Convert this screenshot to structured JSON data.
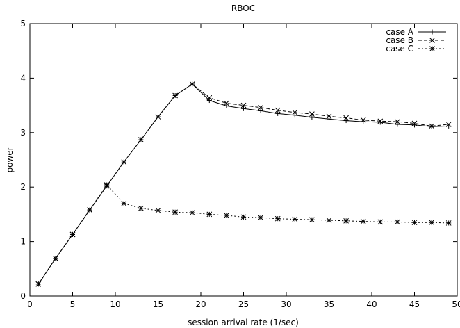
{
  "chart_data": {
    "type": "line",
    "title": "RBOC",
    "xlabel": "session arrival rate (1/sec)",
    "ylabel": "power",
    "xlim": [
      0,
      50
    ],
    "ylim": [
      0,
      5
    ],
    "xticks": [
      0,
      5,
      10,
      15,
      20,
      25,
      30,
      35,
      40,
      45,
      50
    ],
    "yticks": [
      0,
      1,
      2,
      3,
      4,
      5
    ],
    "xtick_labels": [
      "0",
      "5",
      "10",
      "15",
      "20",
      "25",
      "30",
      "35",
      "40",
      "45",
      "50"
    ],
    "ytick_labels": [
      "0",
      "1",
      "2",
      "3",
      "4",
      "5"
    ],
    "grid": false,
    "legend_position": "top-right",
    "x": [
      1,
      3,
      5,
      7,
      9,
      11,
      13,
      15,
      17,
      19,
      21,
      23,
      25,
      27,
      29,
      31,
      33,
      35,
      37,
      39,
      41,
      43,
      45,
      47,
      49
    ],
    "series": [
      {
        "name": "case A",
        "line_style": "solid",
        "marker": "plus",
        "values": [
          0.22,
          0.69,
          1.13,
          1.58,
          2.02,
          2.46,
          2.87,
          3.29,
          3.68,
          3.89,
          3.59,
          3.49,
          3.44,
          3.4,
          3.35,
          3.32,
          3.28,
          3.25,
          3.22,
          3.2,
          3.19,
          3.15,
          3.14,
          3.11,
          3.12
        ]
      },
      {
        "name": "case B",
        "line_style": "dashed",
        "marker": "cross",
        "values": [
          0.22,
          0.69,
          1.13,
          1.58,
          2.02,
          2.46,
          2.87,
          3.29,
          3.68,
          3.89,
          3.64,
          3.54,
          3.5,
          3.46,
          3.41,
          3.37,
          3.34,
          3.3,
          3.27,
          3.23,
          3.21,
          3.2,
          3.17,
          3.12,
          3.15
        ]
      },
      {
        "name": "case C",
        "line_style": "dotted",
        "marker": "star",
        "values": [
          0.22,
          0.69,
          1.13,
          1.58,
          2.04,
          1.7,
          1.61,
          1.57,
          1.54,
          1.53,
          1.5,
          1.48,
          1.45,
          1.44,
          1.42,
          1.41,
          1.4,
          1.39,
          1.38,
          1.37,
          1.36,
          1.36,
          1.35,
          1.35,
          1.34
        ]
      }
    ]
  }
}
